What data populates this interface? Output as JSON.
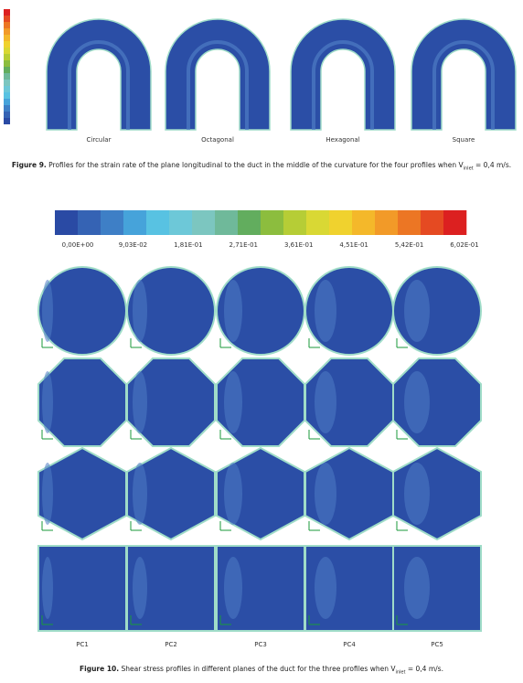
{
  "figure9": {
    "panels": [
      "Circular",
      "Octagonal",
      "Hexagonal",
      "Square"
    ],
    "caption": {
      "label": "Figure 9.",
      "text": "Profiles for the strain rate of the plane longitudinal to the duct in the middle of the curvature for the four profiles when V",
      "subscript": "inlet",
      "tail": "= 0,4 m/s."
    }
  },
  "figure10": {
    "colorbar_labels": [
      "0,00E+00",
      "9,03E-02",
      "1,81E-01",
      "2,71E-01",
      "3,61E-01",
      "4,51E-01",
      "5,42E-01",
      "6,02E-01"
    ],
    "columns": [
      "PC1",
      "PC2",
      "PC3",
      "PC4",
      "PC5"
    ],
    "caption": {
      "label": "Figure 10.",
      "text": "Shear stress profiles in different planes of the duct for the three profiles when V",
      "subscript": "inlet",
      "tail": "= 0,4 m/s."
    }
  }
}
